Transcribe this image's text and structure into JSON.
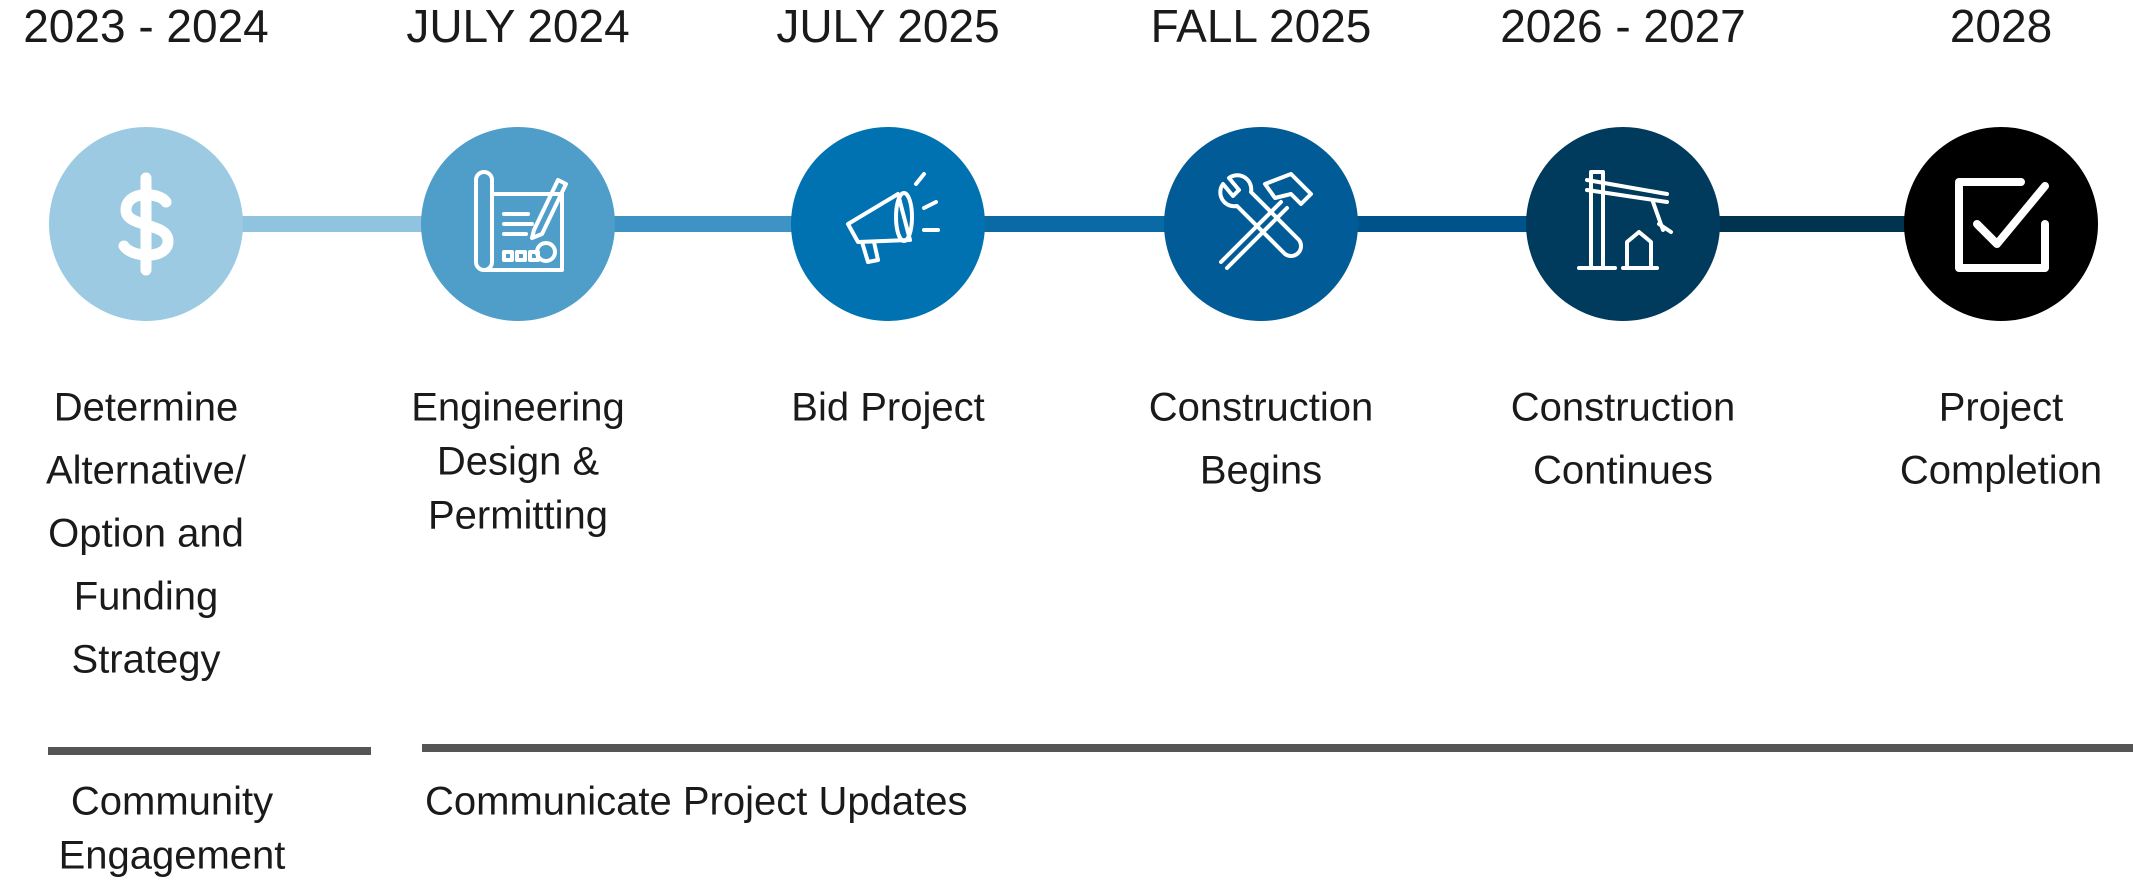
{
  "milestones": [
    {
      "date": "2023 - 2024",
      "lines": [
        "Determine",
        "Alternative/",
        "Option and",
        "Funding",
        "Strategy"
      ]
    },
    {
      "date": "JULY 2024",
      "lines": [
        "Engineering",
        "Design &",
        "Permitting"
      ]
    },
    {
      "date": "JULY 2025",
      "lines": [
        "Bid Project"
      ]
    },
    {
      "date": "FALL 2025",
      "lines": [
        "Construction",
        "Begins"
      ]
    },
    {
      "date": "2026 - 2027",
      "lines": [
        "Construction",
        "Continues"
      ]
    },
    {
      "date": "2028",
      "lines": [
        "Project",
        "Completion"
      ]
    }
  ],
  "tracks": [
    {
      "lines": [
        "Community",
        "Engagement"
      ]
    },
    {
      "lines": [
        "Communicate Project Updates"
      ]
    }
  ]
}
